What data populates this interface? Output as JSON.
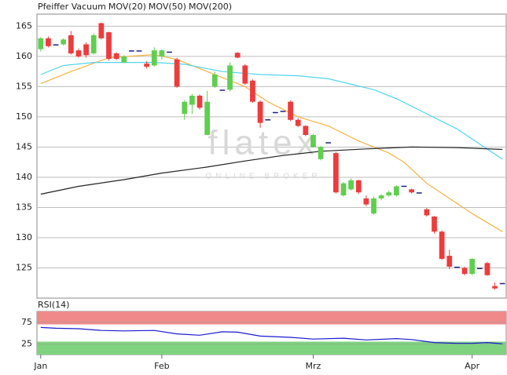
{
  "chart_data": [
    {
      "type": "candlestick",
      "title": "Pfeiffer Vacuum",
      "title_color": "#e8501e",
      "watermark": "flatex",
      "watermark_sub": "ONLINE BROKER",
      "xlim": [
        -0.5,
        61.5
      ],
      "ylim": [
        120,
        167
      ],
      "yticks": [
        125,
        130,
        135,
        140,
        145,
        150,
        155,
        160,
        165
      ],
      "grid": true,
      "up_color": "#5fcf4f",
      "down_color": "#ee3b3b",
      "doji_color": "#202080",
      "open": [
        161.2,
        163,
        162,
        162,
        163.5,
        161,
        162,
        160.5,
        165.5,
        164,
        160.5,
        159,
        161,
        161,
        158.8,
        158.5,
        160,
        160.8,
        159.5,
        150.5,
        152,
        153.5,
        147,
        155,
        154.5,
        154.5,
        160.6,
        158.5,
        156,
        152.5,
        149.6,
        150.8,
        151,
        152.5,
        149.5,
        148.5,
        145,
        143,
        145.8,
        144,
        137,
        138,
        139.5,
        136.5,
        134,
        136.5,
        137,
        137,
        138.6,
        138,
        137.5,
        134.7,
        133.5,
        131,
        127,
        125.2,
        125,
        124,
        125,
        125.8,
        122,
        122.5
      ],
      "high": [
        163.2,
        163.3,
        162,
        163,
        164.2,
        161.3,
        162.3,
        163.8,
        165.6,
        164.1,
        160.7,
        160.2,
        161,
        161,
        159.2,
        161.5,
        161.2,
        160.8,
        159.8,
        152.8,
        153.8,
        153.7,
        154.3,
        157.5,
        154.5,
        159,
        160.7,
        158.7,
        156.2,
        152.7,
        149.6,
        150.8,
        151,
        152.7,
        149.8,
        148.6,
        147.2,
        145.2,
        145.8,
        144.2,
        139.2,
        139.8,
        139.6,
        137,
        136.8,
        137.2,
        137.8,
        138.7,
        138.6,
        138.1,
        137.5,
        134.9,
        133.6,
        131.2,
        128,
        125.2,
        125.2,
        126.6,
        125,
        126,
        122.6,
        122.5
      ],
      "low": [
        160.8,
        161.5,
        162,
        161.8,
        160.3,
        159.8,
        159.8,
        160.3,
        162.8,
        159.3,
        159.4,
        158.9,
        161,
        161,
        158,
        158.3,
        159.5,
        160.8,
        154.8,
        149.5,
        150.5,
        151.2,
        147,
        154.8,
        154.5,
        154.2,
        159.7,
        155.3,
        152.3,
        148.2,
        149.6,
        150.8,
        151,
        149.3,
        148.3,
        146.8,
        144.9,
        142.8,
        145.8,
        137.3,
        136.8,
        137.8,
        137.2,
        135.2,
        133.8,
        136.2,
        136.8,
        136.8,
        138.6,
        137.3,
        137.5,
        133.5,
        130.7,
        126.3,
        124.8,
        125.2,
        123.8,
        123.8,
        125,
        123.7,
        121.4,
        122.5
      ],
      "close": [
        163,
        161.7,
        162,
        162.8,
        160.5,
        160,
        160.2,
        163.5,
        163,
        159.6,
        159.6,
        160,
        161,
        161,
        158.3,
        161,
        161,
        160.8,
        155,
        152.5,
        153.5,
        151.5,
        152.5,
        157,
        154.5,
        158.5,
        159.8,
        155.5,
        152.5,
        149,
        149.6,
        150.8,
        151,
        149.5,
        148.5,
        147,
        147,
        145,
        145.8,
        137.5,
        139,
        139.5,
        137.5,
        135.5,
        136.5,
        137,
        137.5,
        138.5,
        138.6,
        137.5,
        137.5,
        133.7,
        131,
        126.5,
        125.2,
        125.2,
        124,
        126.5,
        125,
        123.8,
        121.6,
        122.5
      ],
      "series": [
        {
          "name": "MOV(20)",
          "color": "#f5b342",
          "x": [
            0,
            4,
            9,
            15,
            18,
            21,
            24,
            27,
            30,
            34,
            38,
            42,
            46,
            48,
            51,
            54,
            57,
            61
          ],
          "values": [
            155.5,
            157.5,
            159.8,
            160.3,
            159.5,
            158,
            156.5,
            155,
            152.5,
            150,
            148.5,
            146,
            144,
            142.5,
            139,
            136.5,
            134,
            131
          ]
        },
        {
          "name": "MOV(50)",
          "color": "#4fd6ee",
          "x": [
            0,
            3,
            7,
            15,
            19,
            24,
            29,
            34,
            38,
            40,
            44,
            47,
            51,
            55,
            58,
            61
          ],
          "values": [
            157,
            158.5,
            159,
            159,
            158.7,
            157.5,
            157,
            156.8,
            156.3,
            155.7,
            154.5,
            153,
            150.5,
            148,
            145.5,
            143
          ]
        },
        {
          "name": "MOV(200)",
          "color": "#222222",
          "x": [
            0,
            5,
            11,
            16,
            22,
            27,
            32,
            37,
            43,
            49,
            55,
            61
          ],
          "values": [
            137.2,
            138.5,
            139.6,
            140.7,
            141.7,
            142.7,
            143.6,
            144.3,
            144.7,
            145,
            144.9,
            144.6
          ]
        }
      ]
    },
    {
      "type": "line",
      "title": "RSI(14)",
      "title_color": "#1a1ad0",
      "xlim": [
        -0.5,
        61.5
      ],
      "ylim": [
        0,
        100
      ],
      "yticks": [
        25,
        75
      ],
      "xticks": [
        {
          "value": 0,
          "label": "Jan"
        },
        {
          "value": 16,
          "label": "Feb"
        },
        {
          "value": 36,
          "label": "Mrz"
        },
        {
          "value": 57,
          "label": "Apr"
        }
      ],
      "bands": [
        {
          "from": 70,
          "to": 100,
          "color": "#f08a8a"
        },
        {
          "from": 0,
          "to": 30,
          "color": "#7fd37f"
        }
      ],
      "series": [
        {
          "name": "RSI(14)",
          "color": "#1a1ad0",
          "x": [
            0,
            2,
            5,
            8,
            11,
            15,
            18,
            21,
            24,
            26,
            29,
            33,
            36,
            40,
            43,
            47,
            49,
            52,
            55,
            57,
            59,
            61
          ],
          "values": [
            63,
            61,
            60,
            56,
            55,
            56,
            48,
            45,
            53,
            52,
            43,
            40,
            36,
            38,
            34,
            37,
            35,
            28,
            26,
            26,
            28,
            25
          ]
        }
      ]
    }
  ]
}
